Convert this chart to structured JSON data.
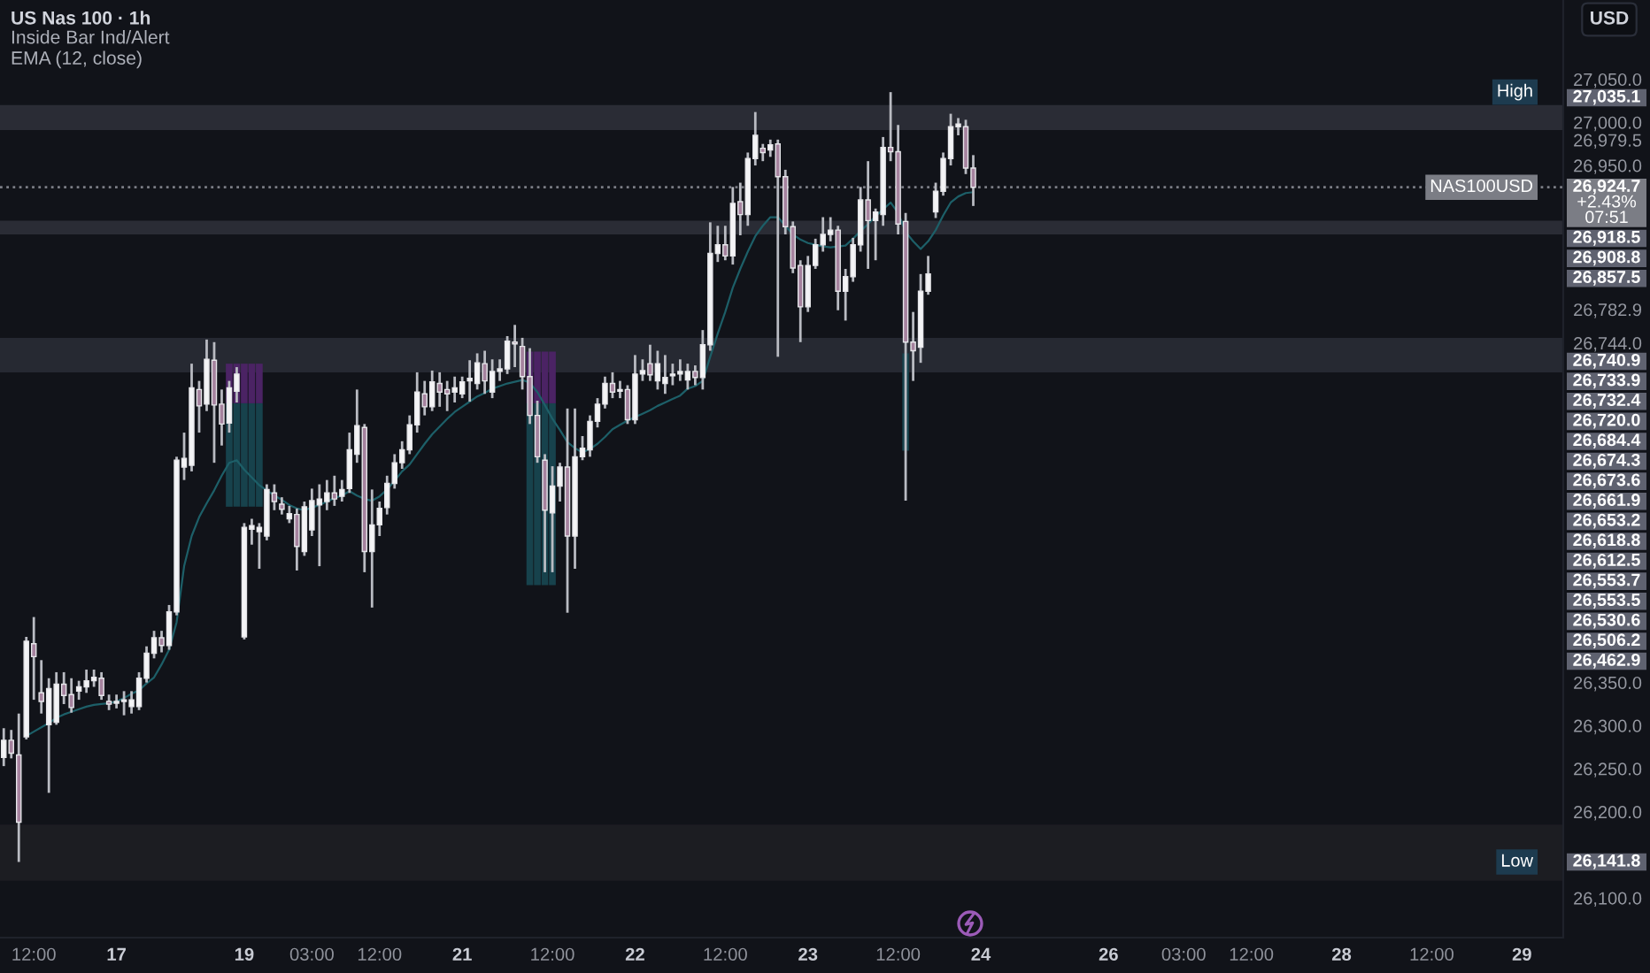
{
  "chart_data": {
    "type": "candlestick",
    "title": "US Nas 100 · 1h",
    "subtitle": "Inside Bar Ind/Alert\nEMA (12, close)",
    "ylabel": "USD",
    "annotations": [
      {
        "text": "High",
        "y": 27035.1
      },
      "27,035.1",
      {
        "text": "NAS100USD",
        "y": 26924.7
      },
      "26,918.5",
      "26,908.8",
      "26,857.5",
      "26,740.9",
      "26,733.9",
      "26,732.4",
      "26,720.0",
      "26,684.4",
      "26,674.3",
      "26,673.6",
      "26,661.9",
      "26,653.2",
      "26,618.8",
      "26,612.5",
      "26,553.7",
      "26,553.5",
      "26,530.6",
      "26,506.2",
      "26,462.9",
      {
        "text": "Low",
        "y": 26141.8
      },
      "26,141.8"
    ],
    "categories": [
      null,
      null,
      null,
      null,
      "12:00",
      null,
      null,
      null,
      null,
      null,
      null,
      null,
      null,
      null,
      null,
      "17",
      null,
      null,
      null,
      null,
      null,
      null,
      null,
      null,
      null,
      null,
      null,
      null,
      null,
      null,
      null,
      null,
      "19",
      null,
      null,
      null,
      null,
      null,
      null,
      null,
      null,
      "03:00",
      null,
      null,
      null,
      null,
      null,
      null,
      null,
      null,
      "12:00",
      null,
      null,
      null,
      null,
      null,
      null,
      null,
      null,
      null,
      null,
      "21",
      null,
      null,
      null,
      null,
      null,
      null,
      null,
      null,
      null,
      null,
      null,
      "12:00",
      null,
      null,
      null,
      null,
      null,
      null,
      null,
      null,
      null,
      null,
      "22",
      null,
      null,
      null,
      null,
      null,
      null,
      null,
      null,
      null,
      null,
      null,
      "12:00",
      null,
      null,
      null,
      null,
      null,
      null,
      null,
      null,
      null,
      null,
      "23",
      null,
      null,
      null,
      null,
      null,
      null,
      null,
      null,
      null,
      null,
      null,
      "12:00",
      null,
      null,
      null,
      null,
      null,
      null,
      null,
      null,
      null,
      null,
      "24",
      null,
      null,
      null,
      null,
      null,
      null,
      null,
      null,
      null,
      null,
      null,
      null,
      null,
      null,
      null,
      null,
      "26",
      null,
      null,
      null,
      null,
      null,
      null,
      null,
      null,
      null,
      "03:00",
      null,
      null,
      null,
      null,
      null,
      null,
      null,
      null,
      "12:00",
      null,
      null,
      null,
      null,
      null,
      null,
      null,
      null,
      null,
      null,
      null,
      "28",
      null,
      null,
      null,
      null,
      null,
      null,
      null,
      null,
      null,
      null,
      null,
      "12:00",
      null,
      null,
      null,
      null,
      null,
      null,
      null,
      null,
      null,
      null,
      null,
      "29",
      null,
      null,
      null,
      null,
      null
    ],
    "ohlc": [
      [
        26263,
        26297,
        26253,
        26283
      ],
      [
        26283,
        26295,
        26262,
        26268
      ],
      [
        26266,
        26314,
        26141.8,
        26188
      ],
      [
        26287,
        26403,
        26284,
        26398
      ],
      [
        26395,
        26426,
        26330,
        26380
      ],
      [
        26338,
        26376,
        26314,
        26328
      ],
      [
        26301,
        26355,
        26222,
        26343
      ],
      [
        26304,
        26362,
        26301,
        26348
      ],
      [
        26348,
        26362,
        26325,
        26335
      ],
      [
        26336,
        26355,
        26315,
        26321
      ],
      [
        26340,
        26352,
        26330,
        26345
      ],
      [
        26345,
        26365,
        26338,
        26352
      ],
      [
        26352,
        26365,
        26345,
        26356
      ],
      [
        26355,
        26362,
        26330,
        26335
      ],
      [
        26328,
        26336,
        26318,
        26325
      ],
      [
        26326,
        26336,
        26320,
        26328
      ],
      [
        26328,
        26340,
        26312,
        26330
      ],
      [
        26322,
        26340,
        26314,
        26330
      ],
      [
        26322,
        26362,
        26318,
        26355
      ],
      [
        26355,
        26392,
        26350,
        26384
      ],
      [
        26384,
        26410,
        26378,
        26402
      ],
      [
        26402,
        26410,
        26385,
        26393
      ],
      [
        26393,
        26440,
        26388,
        26432
      ],
      [
        26432,
        26612,
        26428,
        26608
      ],
      [
        26600,
        26640,
        26585,
        26610
      ],
      [
        26602,
        26720,
        26595,
        26692
      ],
      [
        26690,
        26700,
        26640,
        26671
      ],
      [
        26673,
        26748,
        26665,
        26725
      ],
      [
        26724,
        26745,
        26605,
        26672
      ],
      [
        26673,
        26690,
        26625,
        26650
      ],
      [
        26651,
        26700,
        26640,
        26692
      ],
      [
        26688,
        26716,
        26675,
        26708
      ],
      [
        26403,
        26535,
        26400,
        26530
      ],
      [
        26528,
        26540,
        26510,
        26532
      ],
      [
        26525,
        26535,
        26482,
        26530
      ],
      [
        26520,
        26580,
        26515,
        26574
      ],
      [
        26570,
        26580,
        26550,
        26560
      ],
      [
        26557,
        26565,
        26545,
        26551
      ],
      [
        26540,
        26555,
        26535,
        26546
      ],
      [
        26545,
        26552,
        26480,
        26508
      ],
      [
        26502,
        26560,
        26497,
        26554
      ],
      [
        26527,
        26575,
        26520,
        26561
      ],
      [
        26556,
        26580,
        26485,
        26563
      ],
      [
        26560,
        26585,
        26550,
        26570
      ],
      [
        26570,
        26590,
        26555,
        26563
      ],
      [
        26566,
        26585,
        26560,
        26574
      ],
      [
        26575,
        26640,
        26570,
        26620
      ],
      [
        26615,
        26690,
        26605,
        26648
      ],
      [
        26646,
        26650,
        26478,
        26502
      ],
      [
        26502,
        26574,
        26437,
        26533
      ],
      [
        26533,
        26560,
        26520,
        26552
      ],
      [
        26553,
        26590,
        26545,
        26581
      ],
      [
        26581,
        26615,
        26575,
        26605
      ],
      [
        26605,
        26630,
        26598,
        26620
      ],
      [
        26620,
        26660,
        26615,
        26649
      ],
      [
        26649,
        26710,
        26640,
        26687
      ],
      [
        26685,
        26700,
        26660,
        26670
      ],
      [
        26670,
        26712,
        26665,
        26699
      ],
      [
        26697,
        26710,
        26670,
        26687
      ],
      [
        26690,
        26700,
        26665,
        26685
      ],
      [
        26687,
        26705,
        26675,
        26692
      ],
      [
        26685,
        26705,
        26680,
        26699
      ],
      [
        26700,
        26724,
        26676,
        26703
      ],
      [
        26697,
        26732,
        26690,
        26721
      ],
      [
        26720,
        26735,
        26685,
        26700
      ],
      [
        26687,
        26725,
        26680,
        26711
      ],
      [
        26711,
        26725,
        26700,
        26714
      ],
      [
        26714,
        26752,
        26708,
        26746
      ],
      [
        26745,
        26765,
        26716,
        26743
      ],
      [
        26740,
        26750,
        26690,
        26705
      ],
      [
        26705,
        26738,
        26650,
        26660
      ],
      [
        26660,
        26677,
        26605,
        26612
      ],
      [
        26608,
        26615,
        26478,
        26550
      ],
      [
        26547,
        26601,
        26478,
        26578
      ],
      [
        26578,
        26605,
        26560,
        26600
      ],
      [
        26600,
        26668,
        26431,
        26520
      ],
      [
        26520,
        26668,
        26482,
        26612
      ],
      [
        26612,
        26636,
        26608,
        26622
      ],
      [
        26620,
        26660,
        26612,
        26653
      ],
      [
        26653,
        26680,
        26646,
        26673
      ],
      [
        26673,
        26705,
        26668,
        26697
      ],
      [
        26697,
        26710,
        26680,
        26687
      ],
      [
        26688,
        26700,
        26680,
        26690
      ],
      [
        26690,
        26695,
        26650,
        26655
      ],
      [
        26655,
        26730,
        26650,
        26708
      ],
      [
        26708,
        26725,
        26700,
        26712
      ],
      [
        26720,
        26742,
        26700,
        26707
      ],
      [
        26700,
        26735,
        26690,
        26720
      ],
      [
        26697,
        26730,
        26685,
        26704
      ],
      [
        26706,
        26720,
        26695,
        26708
      ],
      [
        26708,
        26725,
        26700,
        26711
      ],
      [
        26701,
        26720,
        26690,
        26711
      ],
      [
        26711,
        26718,
        26695,
        26704
      ],
      [
        26704,
        26759,
        26690,
        26742
      ],
      [
        26742,
        26884,
        26735,
        26848
      ],
      [
        26848,
        26880,
        26838,
        26858
      ],
      [
        26858,
        26880,
        26840,
        26845
      ],
      [
        26845,
        26925,
        26835,
        26906
      ],
      [
        26908,
        26930,
        26869,
        26893
      ],
      [
        26893,
        26965,
        26880,
        26958
      ],
      [
        26958,
        27012,
        26950,
        26985
      ],
      [
        26970,
        26975,
        26955,
        26965
      ],
      [
        26968,
        26980,
        26960,
        26974
      ],
      [
        26975,
        26980,
        26728,
        26937
      ],
      [
        26937,
        26945,
        26870,
        26879
      ],
      [
        26879,
        26885,
        26825,
        26831
      ],
      [
        26834,
        26840,
        26745,
        26786
      ],
      [
        26786,
        26845,
        26780,
        26834
      ],
      [
        26834,
        26865,
        26830,
        26858
      ],
      [
        26858,
        26890,
        26850,
        26870
      ],
      [
        26870,
        26890,
        26862,
        26875
      ],
      [
        26875,
        26880,
        26782,
        26804
      ],
      [
        26804,
        26830,
        26770,
        26821
      ],
      [
        26821,
        26866,
        26815,
        26858
      ],
      [
        26858,
        26925,
        26850,
        26910
      ],
      [
        26910,
        26955,
        26830,
        26886
      ],
      [
        26886,
        26900,
        26840,
        26896
      ],
      [
        26893,
        26983,
        26880,
        26971
      ],
      [
        26971,
        27035.1,
        26955,
        26966
      ],
      [
        26966,
        26997,
        26870,
        26882
      ],
      [
        26885,
        26895,
        26561,
        26745
      ],
      [
        26745,
        26780,
        26700,
        26735
      ],
      [
        26739,
        26824,
        26721,
        26804
      ],
      [
        26804,
        26845,
        26800,
        26824
      ],
      [
        26896,
        26930,
        26889,
        26920
      ],
      [
        26920,
        26965,
        26915,
        26958
      ],
      [
        26958,
        27010,
        26950,
        26995
      ],
      [
        26995,
        27005,
        26985,
        26998
      ],
      [
        26995,
        27003,
        26940,
        26947
      ],
      [
        26947,
        26962,
        26903,
        26924.7
      ],
      null,
      null,
      null,
      null,
      null,
      null,
      null,
      null,
      null,
      null,
      null,
      null,
      null,
      null,
      null,
      null,
      null,
      null,
      null,
      null,
      null,
      null,
      null,
      null,
      null,
      null,
      null,
      null,
      null,
      null,
      null,
      null,
      null,
      null,
      null,
      null,
      null,
      null,
      null,
      null,
      null,
      null,
      null,
      null,
      null,
      null,
      null,
      null,
      null,
      null,
      null,
      null,
      null,
      null,
      null,
      null,
      null,
      null,
      null,
      null,
      null,
      null,
      null,
      null,
      null,
      null,
      null,
      null,
      null,
      null,
      null,
      null,
      null,
      null,
      null,
      null,
      null,
      null
    ],
    "series": [
      {
        "type": "line",
        "color": "#1d5f68",
        "values": [
          null,
          null,
          null,
          26288,
          26293,
          26298,
          26303,
          26309,
          26313,
          26316,
          26319,
          26322,
          26324,
          26325,
          26326,
          26328,
          26332,
          26337,
          26341,
          26349,
          26356,
          26371,
          26388,
          26420,
          26485,
          26520,
          26542,
          26558,
          26573,
          26590,
          26605,
          26608,
          26597,
          26588,
          26579,
          26573,
          26567,
          26562,
          26556,
          26552,
          26550,
          26553,
          26556,
          26560,
          26564,
          26567,
          26572,
          26567,
          26563,
          26561,
          26566,
          26574,
          26584,
          26595,
          26603,
          26615,
          26627,
          26638,
          26647,
          26656,
          26664,
          26670,
          26676,
          26682,
          26686,
          26691,
          26694,
          26697,
          26699,
          26701,
          26698,
          26687,
          26672,
          26656,
          26643,
          26629,
          26622,
          26617,
          26621,
          26627,
          26635,
          26644,
          26649,
          26654,
          26658,
          26662,
          26666,
          26671,
          26675,
          26679,
          26683,
          26691,
          26694,
          26700,
          26728,
          26755,
          26780,
          26808,
          26830,
          26850,
          26868,
          26880,
          26890,
          26890,
          26880,
          26870,
          26864,
          26860,
          26858,
          26856,
          26855,
          26856,
          26857,
          26865,
          26874,
          26882,
          26891,
          26899,
          26907,
          26895,
          26873,
          26862,
          26853,
          26862,
          26875,
          26892,
          26907,
          26914,
          26918,
          26919,
          null,
          null,
          null,
          null,
          null,
          null,
          null,
          null,
          null,
          null,
          null,
          null,
          null,
          null,
          null,
          null,
          null,
          null,
          null,
          null,
          null,
          null,
          null,
          null,
          null,
          null,
          null,
          null,
          null,
          null,
          null,
          null,
          null,
          null,
          null,
          null,
          null,
          null,
          null,
          null,
          null,
          null,
          null,
          null,
          null,
          null,
          null,
          null,
          null,
          null,
          null,
          null,
          null,
          null,
          null,
          null,
          null,
          null,
          null,
          null,
          null,
          null,
          null,
          null,
          null,
          null,
          null,
          null,
          null,
          null,
          null,
          null,
          null,
          null,
          null,
          null,
          null,
          null
        ]
      },
      {
        "type": "bar",
        "color": "#4b2364",
        "base": [
          null,
          null,
          null,
          null,
          null,
          null,
          null,
          null,
          null,
          null,
          null,
          null,
          null,
          null,
          null,
          null,
          null,
          null,
          null,
          null,
          null,
          null,
          null,
          null,
          null,
          null,
          null,
          null,
          null,
          null,
          26674,
          26674,
          26674,
          26674,
          26674,
          null,
          null,
          null,
          null,
          null,
          null,
          null,
          null,
          null,
          null,
          null,
          null,
          null,
          null,
          null,
          null,
          null,
          null,
          null,
          null,
          null,
          null,
          null,
          null,
          null,
          null,
          null,
          null,
          null,
          null,
          null,
          null,
          null,
          null,
          null,
          26674,
          26674,
          26674,
          26674,
          null,
          null,
          null,
          null,
          null,
          null,
          null,
          null,
          null,
          null,
          null,
          null,
          null,
          null,
          null,
          null,
          null,
          null,
          null,
          null,
          null,
          null,
          null,
          null,
          null,
          null,
          null,
          null,
          null,
          null,
          null,
          null,
          null,
          null,
          null,
          null,
          null,
          null,
          null,
          null,
          null,
          null,
          null,
          null,
          null,
          null,
          null,
          null,
          null,
          null,
          null,
          null,
          null,
          null,
          null,
          null,
          null,
          null,
          null,
          null,
          null,
          null,
          null,
          null,
          null,
          null,
          null,
          null,
          null,
          null,
          null,
          null,
          null,
          null,
          null,
          null,
          null,
          null,
          null,
          null,
          null,
          null,
          null,
          null,
          null,
          null,
          null,
          null,
          null,
          null,
          null,
          null,
          null,
          null,
          null,
          null,
          null,
          null,
          null,
          null,
          null,
          null,
          null,
          null,
          null,
          null,
          null,
          null,
          null,
          null,
          null,
          null,
          null,
          null,
          null,
          null,
          null,
          null,
          null,
          null,
          null,
          null,
          null,
          null,
          null,
          null,
          null,
          null,
          null,
          null,
          null,
          null,
          null,
          null
        ],
        "values": [
          null,
          null,
          null,
          null,
          null,
          null,
          null,
          null,
          null,
          null,
          null,
          null,
          null,
          null,
          null,
          null,
          null,
          null,
          null,
          null,
          null,
          null,
          null,
          null,
          null,
          null,
          null,
          null,
          null,
          null,
          46,
          46,
          46,
          46,
          46,
          null,
          null,
          null,
          null,
          null,
          null,
          null,
          null,
          null,
          null,
          null,
          null,
          null,
          null,
          null,
          null,
          null,
          null,
          null,
          null,
          null,
          null,
          null,
          null,
          null,
          null,
          null,
          null,
          null,
          null,
          null,
          null,
          null,
          null,
          null,
          60,
          60,
          60,
          60,
          null,
          null,
          null,
          null,
          null,
          null,
          null,
          null,
          null,
          null,
          null,
          null,
          null,
          null,
          null,
          null,
          null,
          null,
          null,
          null,
          null,
          null,
          null,
          null,
          null,
          null,
          null,
          null,
          null,
          null,
          null,
          null,
          null,
          null,
          null,
          null,
          null,
          null,
          null,
          null,
          null,
          null,
          null,
          null,
          null,
          null,
          null,
          null,
          null,
          null,
          null,
          null,
          null,
          null,
          null,
          null,
          null,
          null,
          null,
          null,
          null,
          null,
          null,
          null,
          null,
          null,
          null,
          null,
          null,
          null,
          null,
          null,
          null,
          null,
          null,
          null,
          null,
          null,
          null,
          null,
          null,
          null,
          null,
          null,
          null,
          null,
          null,
          null,
          null,
          null,
          null,
          null,
          null,
          null,
          null,
          null,
          null,
          null,
          null,
          null,
          null,
          null,
          null,
          null,
          null,
          null,
          null,
          null,
          null,
          null,
          null,
          null,
          null,
          null,
          null,
          null,
          null,
          null,
          null,
          null,
          null,
          null,
          null,
          null,
          null,
          null,
          null,
          null,
          null,
          null,
          null,
          null,
          null,
          null
        ]
      },
      {
        "type": "bar",
        "color": "#17424c",
        "base": [
          null,
          null,
          null,
          null,
          null,
          null,
          null,
          null,
          null,
          null,
          null,
          null,
          null,
          null,
          null,
          null,
          null,
          null,
          null,
          null,
          null,
          null,
          null,
          null,
          null,
          null,
          null,
          null,
          null,
          null,
          26554,
          26554,
          26554,
          26554,
          26554,
          null,
          null,
          null,
          null,
          null,
          null,
          null,
          null,
          null,
          null,
          null,
          null,
          null,
          null,
          null,
          null,
          null,
          null,
          null,
          null,
          null,
          null,
          null,
          null,
          null,
          null,
          null,
          null,
          null,
          null,
          null,
          null,
          null,
          null,
          null,
          26463,
          26463,
          26463,
          26463,
          null,
          null,
          null,
          null,
          null,
          null,
          null,
          null,
          null,
          null,
          null,
          null,
          null,
          null,
          null,
          null,
          null,
          null,
          null,
          null,
          null,
          null,
          null,
          null,
          null,
          null,
          null,
          null,
          null,
          null,
          null,
          null,
          null,
          null,
          null,
          null,
          null,
          null,
          null,
          null,
          null,
          null,
          null,
          null,
          null,
          null,
          26619,
          null,
          null,
          null,
          null,
          null,
          null,
          null,
          null,
          null,
          null,
          null,
          null,
          null,
          null,
          null,
          null,
          null,
          null,
          null,
          null,
          null,
          null,
          null,
          null,
          null,
          null,
          null,
          null,
          null,
          null,
          null,
          null,
          null,
          null,
          null,
          null,
          null,
          null,
          null,
          null,
          null,
          null,
          null,
          null,
          null,
          null,
          null,
          null,
          null,
          null,
          null,
          null,
          null,
          null,
          null,
          null,
          null,
          null,
          null,
          null,
          null,
          null,
          null,
          null,
          null,
          null,
          null,
          null,
          null,
          null,
          null,
          null,
          null,
          null,
          null,
          null,
          null,
          null,
          null,
          null,
          null,
          null,
          null,
          null,
          null,
          null,
          null
        ],
        "values": [
          null,
          null,
          null,
          null,
          null,
          null,
          null,
          null,
          null,
          null,
          null,
          null,
          null,
          null,
          null,
          null,
          null,
          null,
          null,
          null,
          null,
          null,
          null,
          null,
          null,
          null,
          null,
          null,
          null,
          null,
          120,
          120,
          120,
          120,
          120,
          null,
          null,
          null,
          null,
          null,
          null,
          null,
          null,
          null,
          null,
          null,
          null,
          null,
          null,
          null,
          null,
          null,
          null,
          null,
          null,
          null,
          null,
          null,
          null,
          null,
          null,
          null,
          null,
          null,
          null,
          null,
          null,
          null,
          null,
          null,
          211,
          211,
          211,
          211,
          null,
          null,
          null,
          null,
          null,
          null,
          null,
          null,
          null,
          null,
          null,
          null,
          null,
          null,
          null,
          null,
          null,
          null,
          null,
          null,
          null,
          null,
          null,
          null,
          null,
          null,
          null,
          null,
          null,
          null,
          null,
          null,
          null,
          null,
          null,
          null,
          null,
          null,
          null,
          null,
          null,
          null,
          null,
          null,
          null,
          null,
          113,
          null,
          null,
          null,
          null,
          null,
          null,
          null,
          null,
          null,
          null,
          null,
          null,
          null,
          null,
          null,
          null,
          null,
          null,
          null,
          null,
          null,
          null,
          null,
          null,
          null,
          null,
          null,
          null,
          null,
          null,
          null,
          null,
          null,
          null,
          null,
          null,
          null,
          null,
          null,
          null,
          null,
          null,
          null,
          null,
          null,
          null,
          null,
          null,
          null,
          null,
          null,
          null,
          null,
          null,
          null,
          null,
          null,
          null,
          null,
          null,
          null,
          null,
          null,
          null,
          null,
          null,
          null,
          null,
          null,
          null,
          null,
          null,
          null,
          null,
          null,
          null,
          null,
          null,
          null,
          null,
          null,
          null,
          null,
          null,
          null,
          null,
          null
        ]
      }
    ],
    "ylim": [
      26054,
      27142
    ],
    "yticks": [
      {
        "value": 26100,
        "label": "26,100.0"
      },
      {
        "value": 26200,
        "label": "26,200.0"
      },
      {
        "value": 26250,
        "label": "26,250.0"
      },
      {
        "value": 26300,
        "label": "26,300.0"
      },
      {
        "value": 26350,
        "label": "26,350.0"
      },
      {
        "value": 26744.0,
        "label": "26,744.0"
      },
      {
        "value": 26782.9,
        "label": "26,782.9"
      },
      {
        "value": 26950,
        "label": "26,950.0"
      },
      {
        "value": 26979.5,
        "label": "26,979.5"
      },
      {
        "value": 27000,
        "label": "27,000.0"
      },
      {
        "value": 27050,
        "label": "27,050.0"
      }
    ],
    "bands": [
      {
        "axis": "y",
        "from": 26991,
        "to": 27020,
        "color": "#2a2c35"
      },
      {
        "axis": "y",
        "from": 26870,
        "to": 26886,
        "color": "#2a2c35"
      },
      {
        "axis": "y",
        "from": 26710,
        "to": 26750,
        "color": "#262932"
      },
      {
        "axis": "y",
        "from": 26120,
        "to": 26185,
        "color": "#1c1d22"
      }
    ],
    "ref_lines": [
      {
        "axis": "y",
        "value": 26924.7,
        "label": "26,924.7\n+2.43%\n07:51",
        "color": "#7b7d85",
        "line_style": "dotted"
      }
    ]
  }
}
